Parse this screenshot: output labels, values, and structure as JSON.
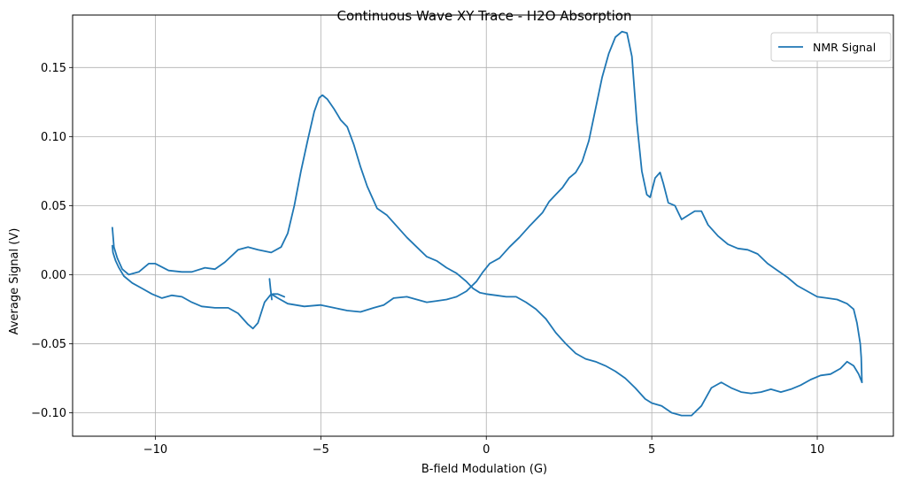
{
  "chart_data": {
    "type": "line",
    "title": "Continuous Wave XY Trace - H2O Absorption",
    "xlabel": "B-field Modulation (G)",
    "ylabel": "Average Signal (V)",
    "xlim": [
      -12.5,
      12.3
    ],
    "ylim": [
      -0.117,
      0.188
    ],
    "xticks": [
      -10,
      -5,
      0,
      5,
      10
    ],
    "xtick_labels": [
      "−10",
      "−5",
      "0",
      "5",
      "10"
    ],
    "yticks": [
      -0.1,
      -0.05,
      0.0,
      0.05,
      0.1,
      0.15
    ],
    "ytick_labels": [
      "−0.10",
      "−0.05",
      "0.00",
      "0.05",
      "0.10",
      "0.15"
    ],
    "grid": true,
    "legend_position": "top-right",
    "series": [
      {
        "name": "NMR Signal",
        "color": "#1f77b4",
        "segments": [
          [
            [
              -11.3,
              0.034
            ],
            [
              -11.25,
              0.02
            ],
            [
              -11.15,
              0.012
            ],
            [
              -11.0,
              0.004
            ],
            [
              -10.8,
              0.0
            ],
            [
              -10.5,
              0.002
            ],
            [
              -10.2,
              0.008
            ],
            [
              -10.0,
              0.008
            ],
            [
              -9.6,
              0.003
            ],
            [
              -9.2,
              0.002
            ],
            [
              -8.9,
              0.002
            ],
            [
              -8.5,
              0.005
            ],
            [
              -8.2,
              0.004
            ],
            [
              -7.9,
              0.009
            ],
            [
              -7.5,
              0.018
            ],
            [
              -7.2,
              0.02
            ],
            [
              -6.9,
              0.018
            ],
            [
              -6.5,
              0.016
            ],
            [
              -6.2,
              0.02
            ],
            [
              -6.0,
              0.03
            ],
            [
              -5.8,
              0.05
            ],
            [
              -5.6,
              0.075
            ],
            [
              -5.4,
              0.097
            ],
            [
              -5.2,
              0.118
            ],
            [
              -5.05,
              0.128
            ],
            [
              -4.95,
              0.13
            ],
            [
              -4.8,
              0.127
            ],
            [
              -4.6,
              0.12
            ],
            [
              -4.4,
              0.112
            ],
            [
              -4.2,
              0.107
            ],
            [
              -4.0,
              0.094
            ],
            [
              -3.8,
              0.078
            ],
            [
              -3.6,
              0.064
            ],
            [
              -3.3,
              0.048
            ],
            [
              -3.0,
              0.043
            ],
            [
              -2.7,
              0.035
            ],
            [
              -2.4,
              0.027
            ],
            [
              -2.1,
              0.02
            ],
            [
              -1.8,
              0.013
            ],
            [
              -1.5,
              0.01
            ],
            [
              -1.2,
              0.005
            ],
            [
              -0.9,
              0.001
            ],
            [
              -0.6,
              -0.005
            ],
            [
              -0.4,
              -0.01
            ],
            [
              -0.2,
              -0.013
            ],
            [
              0.0,
              -0.014
            ],
            [
              0.3,
              -0.015
            ],
            [
              0.6,
              -0.016
            ],
            [
              0.9,
              -0.016
            ],
            [
              1.2,
              -0.02
            ],
            [
              1.5,
              -0.025
            ],
            [
              1.8,
              -0.032
            ],
            [
              2.1,
              -0.042
            ],
            [
              2.4,
              -0.05
            ],
            [
              2.7,
              -0.057
            ],
            [
              3.0,
              -0.061
            ],
            [
              3.3,
              -0.063
            ],
            [
              3.6,
              -0.066
            ],
            [
              3.9,
              -0.07
            ],
            [
              4.2,
              -0.075
            ],
            [
              4.5,
              -0.082
            ],
            [
              4.8,
              -0.09
            ],
            [
              5.0,
              -0.093
            ],
            [
              5.3,
              -0.095
            ],
            [
              5.6,
              -0.1
            ],
            [
              5.9,
              -0.102
            ],
            [
              6.2,
              -0.102
            ],
            [
              6.5,
              -0.095
            ],
            [
              6.8,
              -0.082
            ],
            [
              7.1,
              -0.078
            ],
            [
              7.4,
              -0.082
            ],
            [
              7.7,
              -0.085
            ],
            [
              8.0,
              -0.086
            ],
            [
              8.3,
              -0.085
            ],
            [
              8.6,
              -0.083
            ],
            [
              8.9,
              -0.085
            ],
            [
              9.2,
              -0.083
            ],
            [
              9.5,
              -0.08
            ],
            [
              9.8,
              -0.076
            ],
            [
              10.1,
              -0.073
            ],
            [
              10.4,
              -0.072
            ],
            [
              10.7,
              -0.068
            ],
            [
              10.9,
              -0.063
            ],
            [
              11.1,
              -0.066
            ],
            [
              11.25,
              -0.072
            ],
            [
              11.35,
              -0.078
            ]
          ],
          [
            [
              11.35,
              -0.078
            ],
            [
              11.33,
              -0.06
            ],
            [
              11.3,
              -0.05
            ],
            [
              11.2,
              -0.035
            ],
            [
              11.1,
              -0.025
            ],
            [
              10.9,
              -0.021
            ],
            [
              10.6,
              -0.018
            ],
            [
              10.3,
              -0.017
            ],
            [
              10.0,
              -0.016
            ],
            [
              9.7,
              -0.012
            ],
            [
              9.4,
              -0.008
            ],
            [
              9.1,
              -0.002
            ],
            [
              8.8,
              0.003
            ],
            [
              8.5,
              0.008
            ],
            [
              8.2,
              0.015
            ],
            [
              7.9,
              0.018
            ],
            [
              7.6,
              0.019
            ],
            [
              7.3,
              0.022
            ],
            [
              7.0,
              0.028
            ],
            [
              6.7,
              0.036
            ],
            [
              6.5,
              0.046
            ],
            [
              6.3,
              0.046
            ],
            [
              6.1,
              0.043
            ],
            [
              5.9,
              0.04
            ],
            [
              5.7,
              0.05
            ],
            [
              5.5,
              0.052
            ],
            [
              5.35,
              0.066
            ],
            [
              5.25,
              0.074
            ],
            [
              5.1,
              0.07
            ],
            [
              4.95,
              0.056
            ],
            [
              4.85,
              0.058
            ],
            [
              4.7,
              0.075
            ],
            [
              4.55,
              0.11
            ],
            [
              4.4,
              0.158
            ],
            [
              4.25,
              0.175
            ],
            [
              4.1,
              0.176
            ],
            [
              3.9,
              0.172
            ],
            [
              3.7,
              0.16
            ],
            [
              3.5,
              0.143
            ],
            [
              3.3,
              0.12
            ],
            [
              3.1,
              0.097
            ],
            [
              2.9,
              0.082
            ],
            [
              2.7,
              0.074
            ],
            [
              2.5,
              0.07
            ],
            [
              2.3,
              0.063
            ],
            [
              2.1,
              0.058
            ],
            [
              1.9,
              0.053
            ],
            [
              1.7,
              0.045
            ],
            [
              1.5,
              0.04
            ],
            [
              1.3,
              0.035
            ],
            [
              1.0,
              0.027
            ],
            [
              0.7,
              0.02
            ],
            [
              0.4,
              0.012
            ],
            [
              0.1,
              0.008
            ],
            [
              -0.1,
              0.002
            ],
            [
              -0.3,
              -0.005
            ],
            [
              -0.6,
              -0.012
            ],
            [
              -0.9,
              -0.016
            ],
            [
              -1.2,
              -0.018
            ],
            [
              -1.5,
              -0.019
            ],
            [
              -1.8,
              -0.02
            ],
            [
              -2.1,
              -0.018
            ],
            [
              -2.4,
              -0.016
            ],
            [
              -2.8,
              -0.017
            ],
            [
              -3.1,
              -0.022
            ],
            [
              -3.4,
              -0.024
            ],
            [
              -3.8,
              -0.027
            ],
            [
              -4.2,
              -0.026
            ],
            [
              -4.6,
              -0.024
            ],
            [
              -5.0,
              -0.022
            ],
            [
              -5.5,
              -0.023
            ],
            [
              -6.0,
              -0.021
            ],
            [
              -6.3,
              -0.017
            ],
            [
              -6.5,
              -0.014
            ],
            [
              -6.7,
              -0.02
            ],
            [
              -6.9,
              -0.035
            ],
            [
              -7.05,
              -0.039
            ],
            [
              -7.2,
              -0.036
            ],
            [
              -7.5,
              -0.028
            ],
            [
              -7.8,
              -0.024
            ],
            [
              -8.2,
              -0.024
            ],
            [
              -8.6,
              -0.023
            ],
            [
              -8.9,
              -0.02
            ],
            [
              -9.2,
              -0.016
            ],
            [
              -9.5,
              -0.015
            ],
            [
              -9.8,
              -0.017
            ],
            [
              -10.1,
              -0.014
            ],
            [
              -10.4,
              -0.01
            ],
            [
              -10.7,
              -0.006
            ],
            [
              -10.95,
              -0.001
            ],
            [
              -11.1,
              0.005
            ],
            [
              -11.2,
              0.01
            ],
            [
              -11.28,
              0.016
            ],
            [
              -11.3,
              0.021
            ]
          ],
          [
            [
              -6.55,
              -0.003
            ],
            [
              -6.52,
              -0.01
            ],
            [
              -6.48,
              -0.018
            ]
          ],
          [
            [
              -6.45,
              -0.014
            ],
            [
              -6.3,
              -0.014
            ],
            [
              -6.1,
              -0.016
            ]
          ]
        ]
      }
    ]
  }
}
